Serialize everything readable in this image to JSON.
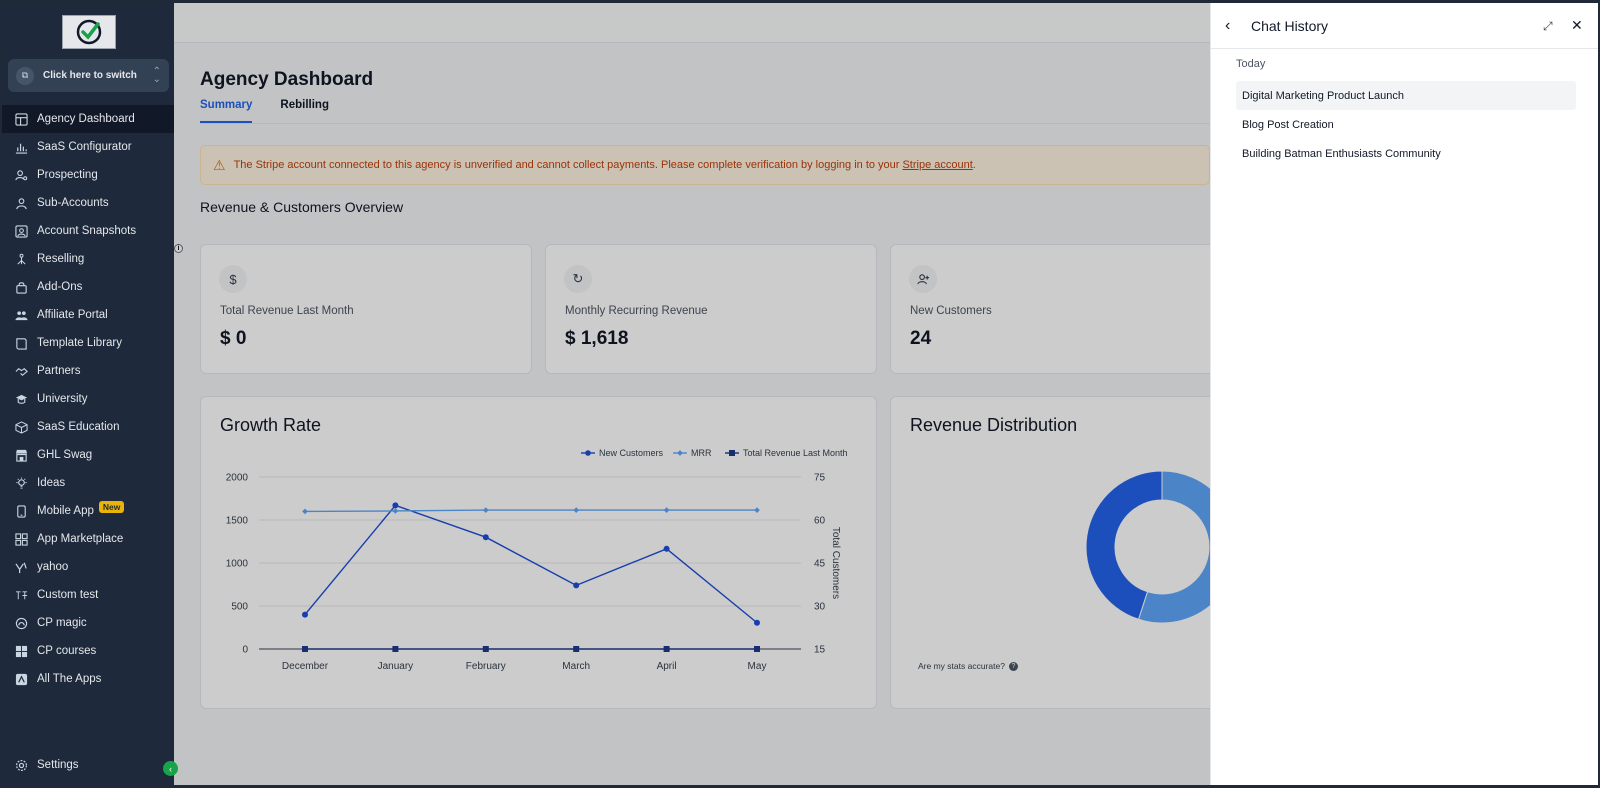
{
  "sidebar": {
    "switcher_label": "Click here to switch",
    "items": [
      {
        "label": "Agency Dashboard",
        "icon": "dashboard-icon",
        "active": true
      },
      {
        "label": "SaaS Configurator",
        "icon": "bar-chart-icon"
      },
      {
        "label": "Prospecting",
        "icon": "user-search-icon"
      },
      {
        "label": "Sub-Accounts",
        "icon": "user-icon"
      },
      {
        "label": "Account Snapshots",
        "icon": "snapshot-icon"
      },
      {
        "label": "Reselling",
        "icon": "network-icon"
      },
      {
        "label": "Add-Ons",
        "icon": "bag-icon"
      },
      {
        "label": "Affiliate Portal",
        "icon": "users-icon"
      },
      {
        "label": "Template Library",
        "icon": "book-icon"
      },
      {
        "label": "Partners",
        "icon": "handshake-icon"
      },
      {
        "label": "University",
        "icon": "graduation-cap-icon"
      },
      {
        "label": "SaaS Education",
        "icon": "cube-icon"
      },
      {
        "label": "GHL Swag",
        "icon": "store-icon"
      },
      {
        "label": "Ideas",
        "icon": "lightbulb-icon"
      },
      {
        "label": "Mobile App",
        "icon": "mobile-icon",
        "badge": "New"
      },
      {
        "label": "App Marketplace",
        "icon": "grid-icon"
      },
      {
        "label": "yahoo",
        "icon": "yahoo-icon"
      },
      {
        "label": "Custom test",
        "icon": "custom-icon"
      },
      {
        "label": "CP magic",
        "icon": "magic-icon"
      },
      {
        "label": "CP courses",
        "icon": "windows-icon"
      },
      {
        "label": "All The Apps",
        "icon": "apps-icon"
      }
    ],
    "settings_label": "Settings"
  },
  "main": {
    "title": "Agency Dashboard",
    "tabs": [
      {
        "label": "Summary",
        "active": true
      },
      {
        "label": "Rebilling"
      }
    ],
    "alert": {
      "text": "The Stripe account connected to this agency is unverified and cannot collect payments. Please complete verification by logging in to your",
      "link": "Stripe account",
      "tail": "."
    },
    "section_title": "Revenue & Customers Overview",
    "stats": [
      {
        "label": "Total Revenue Last Month",
        "value": "$ 0",
        "icon": "dollar-icon"
      },
      {
        "label": "Monthly Recurring Revenue",
        "value": "$ 1,618",
        "icon": "refresh-icon"
      },
      {
        "label": "New Customers",
        "value": "24",
        "icon": "user-plus-icon"
      }
    ],
    "growth_title": "Growth Rate",
    "distribution_title": "Revenue Distribution",
    "accuracy_note": "Are my stats accurate?"
  },
  "chart_data": [
    {
      "type": "line",
      "title": "Growth Rate",
      "categories": [
        "December",
        "January",
        "February",
        "March",
        "April",
        "May"
      ],
      "y_left_ticks": [
        0,
        500,
        1000,
        1500,
        2000
      ],
      "y_right_ticks": [
        15,
        30,
        45,
        60,
        75
      ],
      "y_left_lim": [
        0,
        2000
      ],
      "y_right_lim": [
        15,
        75
      ],
      "y_right_label": "Total Customers",
      "legend_position": "top-right",
      "series": [
        {
          "name": "New Customers",
          "values": [
            400,
            1670,
            1300,
            740,
            1165,
            305
          ],
          "color": "#1d4ed8",
          "marker": "circle"
        },
        {
          "name": "MRR",
          "values": [
            1600,
            1605,
            1615,
            1615,
            1615,
            1615
          ],
          "color": "#60a5fa",
          "marker": "diamond"
        },
        {
          "name": "Total Revenue Last Month",
          "values": [
            0,
            0,
            0,
            0,
            0,
            0
          ],
          "color": "#1e3a8a",
          "marker": "square"
        }
      ]
    },
    {
      "type": "pie",
      "title": "Revenue Distribution",
      "style": "donut",
      "slices": [
        {
          "value": 45,
          "color": "#2563eb"
        },
        {
          "value": 55,
          "color": "#60a5fa"
        }
      ]
    }
  ],
  "chat": {
    "title": "Chat History",
    "group": "Today",
    "items": [
      {
        "label": "Digital Marketing Product Launch",
        "selected": true
      },
      {
        "label": "Blog Post Creation"
      },
      {
        "label": "Building Batman Enthusiasts Community"
      }
    ]
  }
}
